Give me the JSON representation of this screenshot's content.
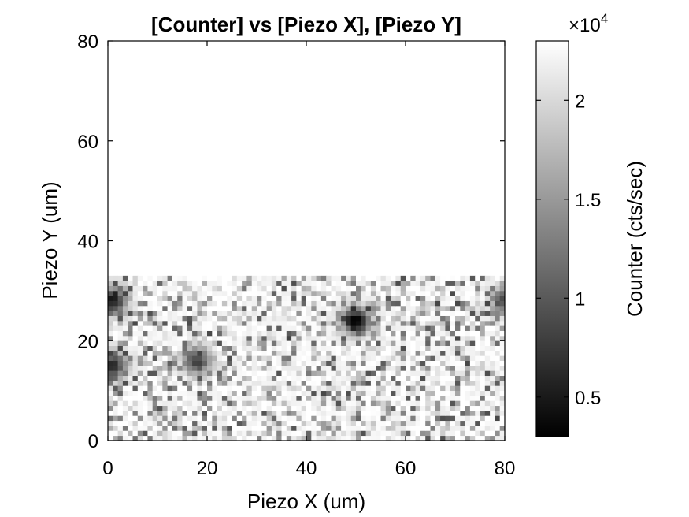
{
  "chart_data": {
    "type": "heatmap",
    "title": "[Counter] vs [Piezo X], [Piezo Y]",
    "xlabel": "Piezo X (um)",
    "ylabel": "Piezo Y (um)",
    "xlim": [
      0,
      80
    ],
    "ylim": [
      0,
      80
    ],
    "x_ticks": [
      "0",
      "20",
      "40",
      "60",
      "80"
    ],
    "y_ticks": [
      "0",
      "20",
      "40",
      "60",
      "80"
    ],
    "grid": false,
    "colormap": "gray",
    "data_extent": {
      "x": [
        0,
        80
      ],
      "y": [
        0,
        33
      ]
    },
    "grid_size": {
      "nx": 80,
      "ny": 33
    },
    "empty_region_value": 23000,
    "hotspots": [
      {
        "x": 50,
        "y": 24,
        "value": 3000
      },
      {
        "x": 1,
        "y": 28,
        "value": 5000
      },
      {
        "x": 1,
        "y": 15,
        "value": 6000
      },
      {
        "x": 18,
        "y": 16,
        "value": 8000
      },
      {
        "x": 80,
        "y": 28,
        "value": 9000
      }
    ],
    "colorbar": {
      "label": "Counter (cts/sec)",
      "multiplier": "×10",
      "exponent": "4",
      "clim": [
        0.3,
        2.3
      ],
      "ticks": [
        "0.5",
        "1",
        "1.5",
        "2"
      ]
    }
  }
}
